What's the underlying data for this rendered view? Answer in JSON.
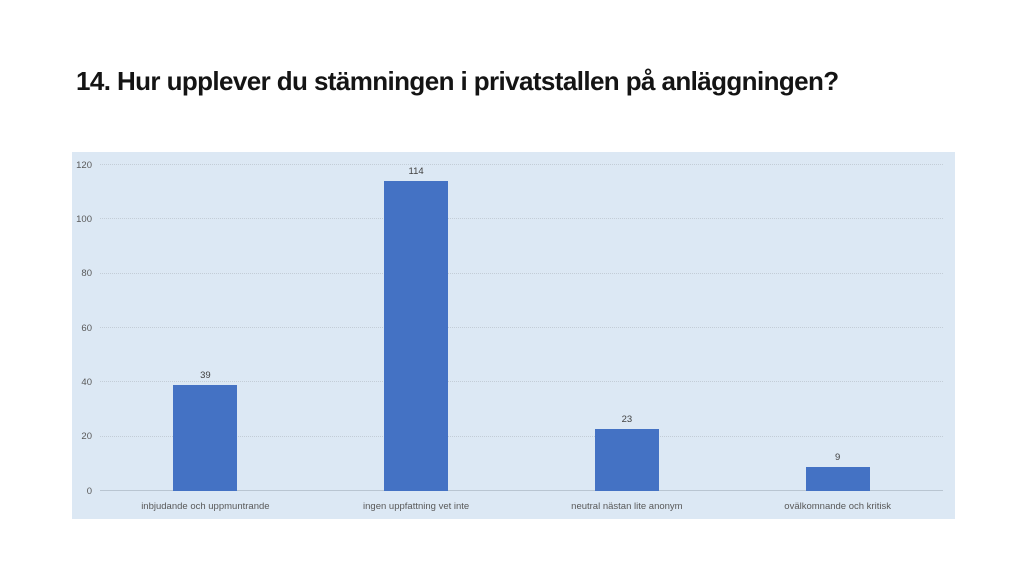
{
  "page": {
    "title": "14. Hur upplever du stämningen i privatstallen på anläggningen?"
  },
  "chart_data": {
    "type": "bar",
    "title": "14. Hur upplever du stämningen i privatstallen på anläggningen?",
    "categories": [
      "inbjudande och uppmuntrande",
      "ingen uppfattning vet inte",
      "neutral nästan lite anonym",
      "ovälkomnande och kritisk"
    ],
    "values": [
      39,
      114,
      23,
      9
    ],
    "xlabel": "",
    "ylabel": "",
    "ylim": [
      0,
      120
    ],
    "yticks": [
      0,
      20,
      40,
      60,
      80,
      100,
      120
    ],
    "grid": true,
    "legend": "none",
    "bar_color": "#4472c4",
    "panel_bg": "#dce8f4"
  }
}
